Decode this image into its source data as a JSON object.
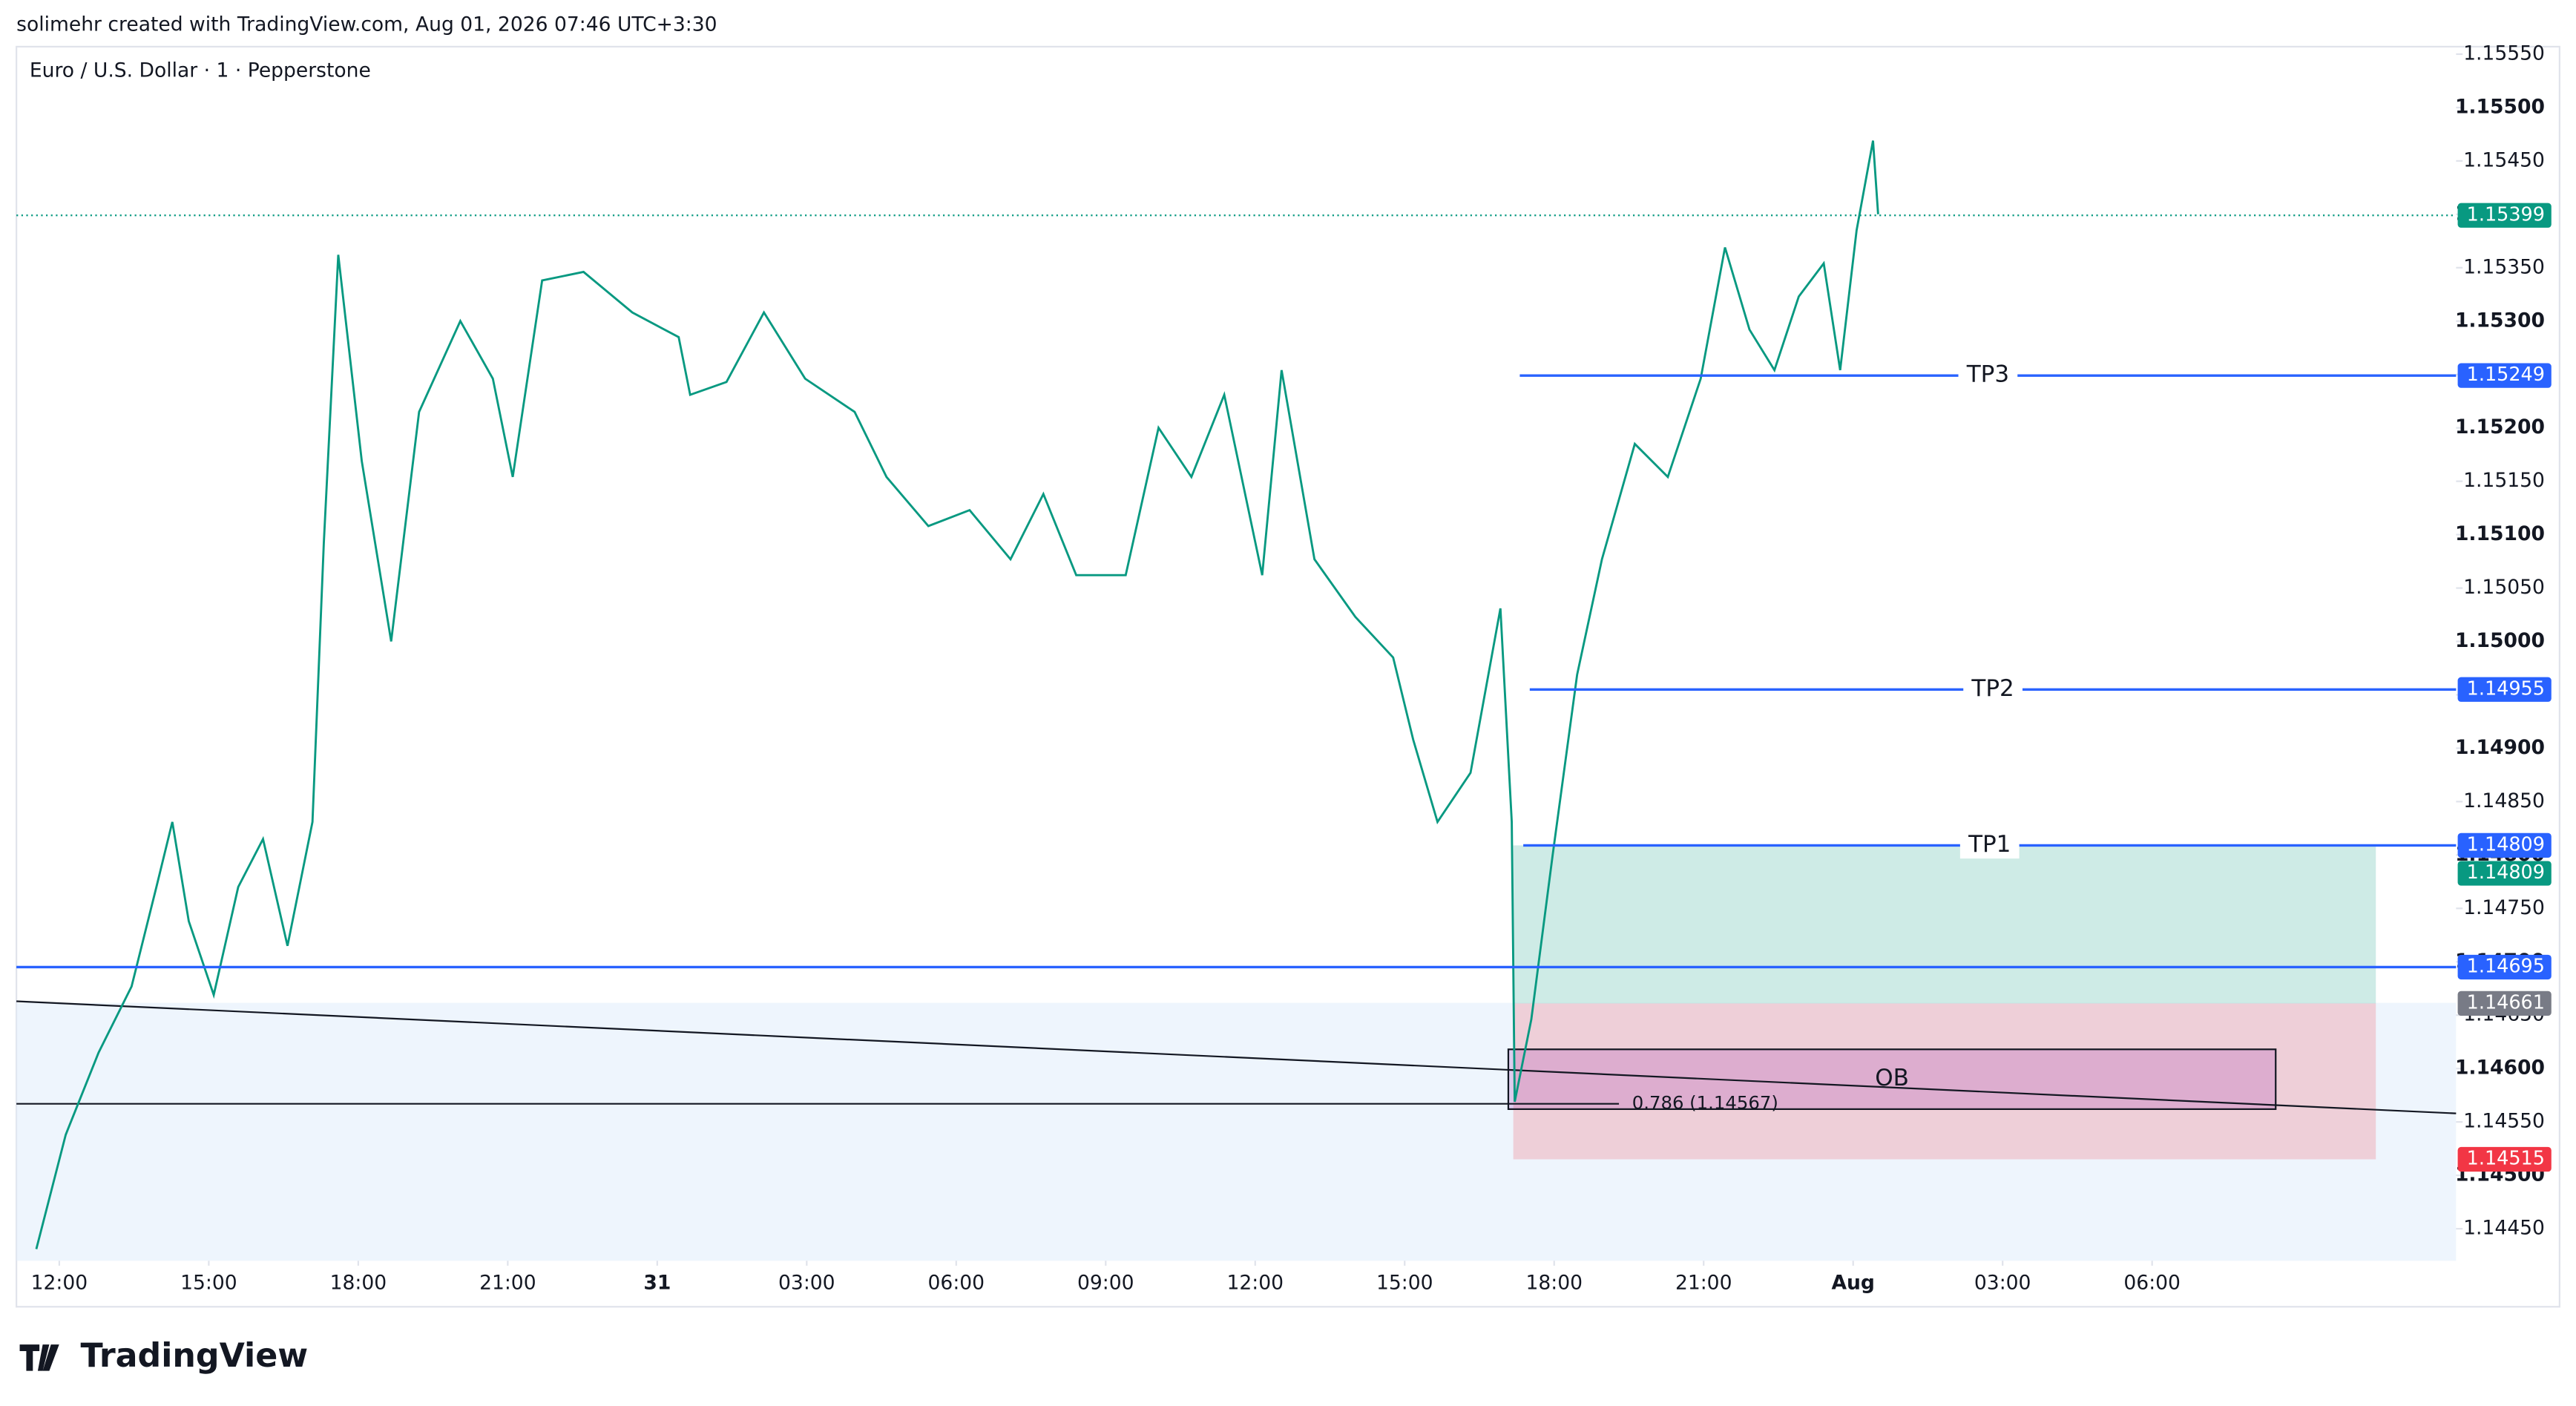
{
  "header": {
    "credit": "solimehr created with TradingView.com, Aug 01, 2026 07:46 UTC+3:30",
    "logo": "TradingView"
  },
  "chart_data": {
    "type": "line",
    "title": "Euro / U.S. Dollar · 1 · Pepperstone",
    "color": "#089981",
    "x": [
      -0.46,
      0.13,
      0.79,
      1.45,
      1.95,
      2.27,
      2.6,
      3.1,
      3.59,
      4.09,
      4.58,
      5.08,
      5.31,
      5.6,
      6.07,
      6.66,
      7.22,
      8.05,
      8.7,
      9.1,
      9.69,
      10.52,
      11.5,
      12.43,
      12.66,
      13.39,
      14.14,
      14.97,
      15.96,
      16.6,
      17.44,
      18.27,
      19.09,
      19.75,
      20.41,
      21.4,
      22.06,
      22.72,
      23.38,
      24.14,
      24.53,
      25.19,
      26.01,
      26.77,
      27.17,
      27.66,
      28.32,
      28.92,
      29.15,
      29.21,
      29.54,
      29.97,
      30.46,
      30.96,
      31.62,
      32.28,
      32.94,
      33.43,
      33.92,
      34.42,
      34.91,
      35.41,
      35.74,
      36.07,
      36.4,
      36.5
    ],
    "values": [
      1.14431,
      1.14538,
      1.14615,
      1.14677,
      1.1477,
      1.14831,
      1.14738,
      1.14669,
      1.1477,
      1.14815,
      1.14715,
      1.14831,
      1.15092,
      1.15362,
      1.15169,
      1.15,
      1.15215,
      1.153,
      1.15246,
      1.15154,
      1.15338,
      1.15346,
      1.15308,
      1.15285,
      1.15231,
      1.15243,
      1.15308,
      1.15246,
      1.15215,
      1.15154,
      1.15108,
      1.15123,
      1.15077,
      1.15138,
      1.15062,
      1.15062,
      1.152,
      1.15154,
      1.15231,
      1.15062,
      1.15254,
      1.15077,
      1.15023,
      1.14985,
      1.14908,
      1.14831,
      1.14877,
      1.15031,
      1.14831,
      1.14569,
      1.14646,
      1.148,
      1.14969,
      1.15077,
      1.15185,
      1.15154,
      1.15246,
      1.15369,
      1.15292,
      1.15254,
      1.15323,
      1.15354,
      1.15254,
      1.15385,
      1.15469,
      1.154
    ],
    "xlim": [
      -0.86,
      48.1
    ],
    "xticks": [
      {
        "value": 0,
        "label": "12:00"
      },
      {
        "value": 3,
        "label": "15:00"
      },
      {
        "value": 6,
        "label": "18:00"
      },
      {
        "value": 9,
        "label": "21:00"
      },
      {
        "value": 12,
        "label": "31"
      },
      {
        "value": 15,
        "label": "03:00"
      },
      {
        "value": 18,
        "label": "06:00"
      },
      {
        "value": 21,
        "label": "09:00"
      },
      {
        "value": 24,
        "label": "12:00"
      },
      {
        "value": 27,
        "label": "15:00"
      },
      {
        "value": 30,
        "label": "18:00"
      },
      {
        "value": 33,
        "label": "21:00"
      },
      {
        "value": 36,
        "label": "Aug"
      },
      {
        "value": 39,
        "label": "03:00"
      },
      {
        "value": 42,
        "label": "06:00"
      }
    ],
    "ylim": [
      1.1442,
      1.15557
    ],
    "yticks": [
      {
        "value": 1.1445,
        "label": "1.14450"
      },
      {
        "value": 1.145,
        "label": "1.14500"
      },
      {
        "value": 1.1455,
        "label": "1.14550"
      },
      {
        "value": 1.146,
        "label": "1.14600"
      },
      {
        "value": 1.1465,
        "label": "1.14650"
      },
      {
        "value": 1.147,
        "label": "1.14700"
      },
      {
        "value": 1.1475,
        "label": "1.14750"
      },
      {
        "value": 1.148,
        "label": "1.14800"
      },
      {
        "value": 1.1485,
        "label": "1.14850"
      },
      {
        "value": 1.149,
        "label": "1.14900"
      },
      {
        "value": 1.1495,
        "label": "1.14950"
      },
      {
        "value": 1.15,
        "label": "1.15000"
      },
      {
        "value": 1.1505,
        "label": "1.15050"
      },
      {
        "value": 1.151,
        "label": "1.15100"
      },
      {
        "value": 1.1515,
        "label": "1.15150"
      },
      {
        "value": 1.152,
        "label": "1.15200"
      },
      {
        "value": 1.1525,
        "label": "1.15250"
      },
      {
        "value": 1.153,
        "label": "1.15300"
      },
      {
        "value": 1.1535,
        "label": "1.15350"
      },
      {
        "value": 1.154,
        "label": "1.15400"
      },
      {
        "value": 1.1545,
        "label": "1.15450"
      },
      {
        "value": 1.155,
        "label": "1.15500"
      },
      {
        "value": 1.1555,
        "label": "1.15550"
      }
    ],
    "current_price": {
      "value": 1.15399,
      "color": "#089981"
    },
    "levels": [
      {
        "label": "TP3",
        "value": 1.15249,
        "start": 29.31,
        "color": "#2962ff"
      },
      {
        "label": "TP2",
        "value": 1.14955,
        "start": 29.51,
        "color": "#2962ff"
      },
      {
        "label": "TP1",
        "value": 1.14809,
        "start": 29.38,
        "color": "#2962ff"
      },
      {
        "value": 1.14695,
        "start": -0.86,
        "color": "#2962ff"
      }
    ],
    "position": {
      "start": 29.18,
      "end": 46.49,
      "entry": 1.14661,
      "target": 1.14809,
      "stop": 1.14515
    },
    "trendline": {
      "x": [
        -0.86,
        48.1
      ],
      "values": [
        1.14663,
        1.14558
      ]
    },
    "fib_level": {
      "label": "0.786 (1.14567)",
      "value": 1.14567,
      "end": 31.3
    },
    "order_block": {
      "label": "OB",
      "x": [
        29.08,
        44.48
      ],
      "values": [
        1.14618,
        1.14562
      ]
    }
  }
}
